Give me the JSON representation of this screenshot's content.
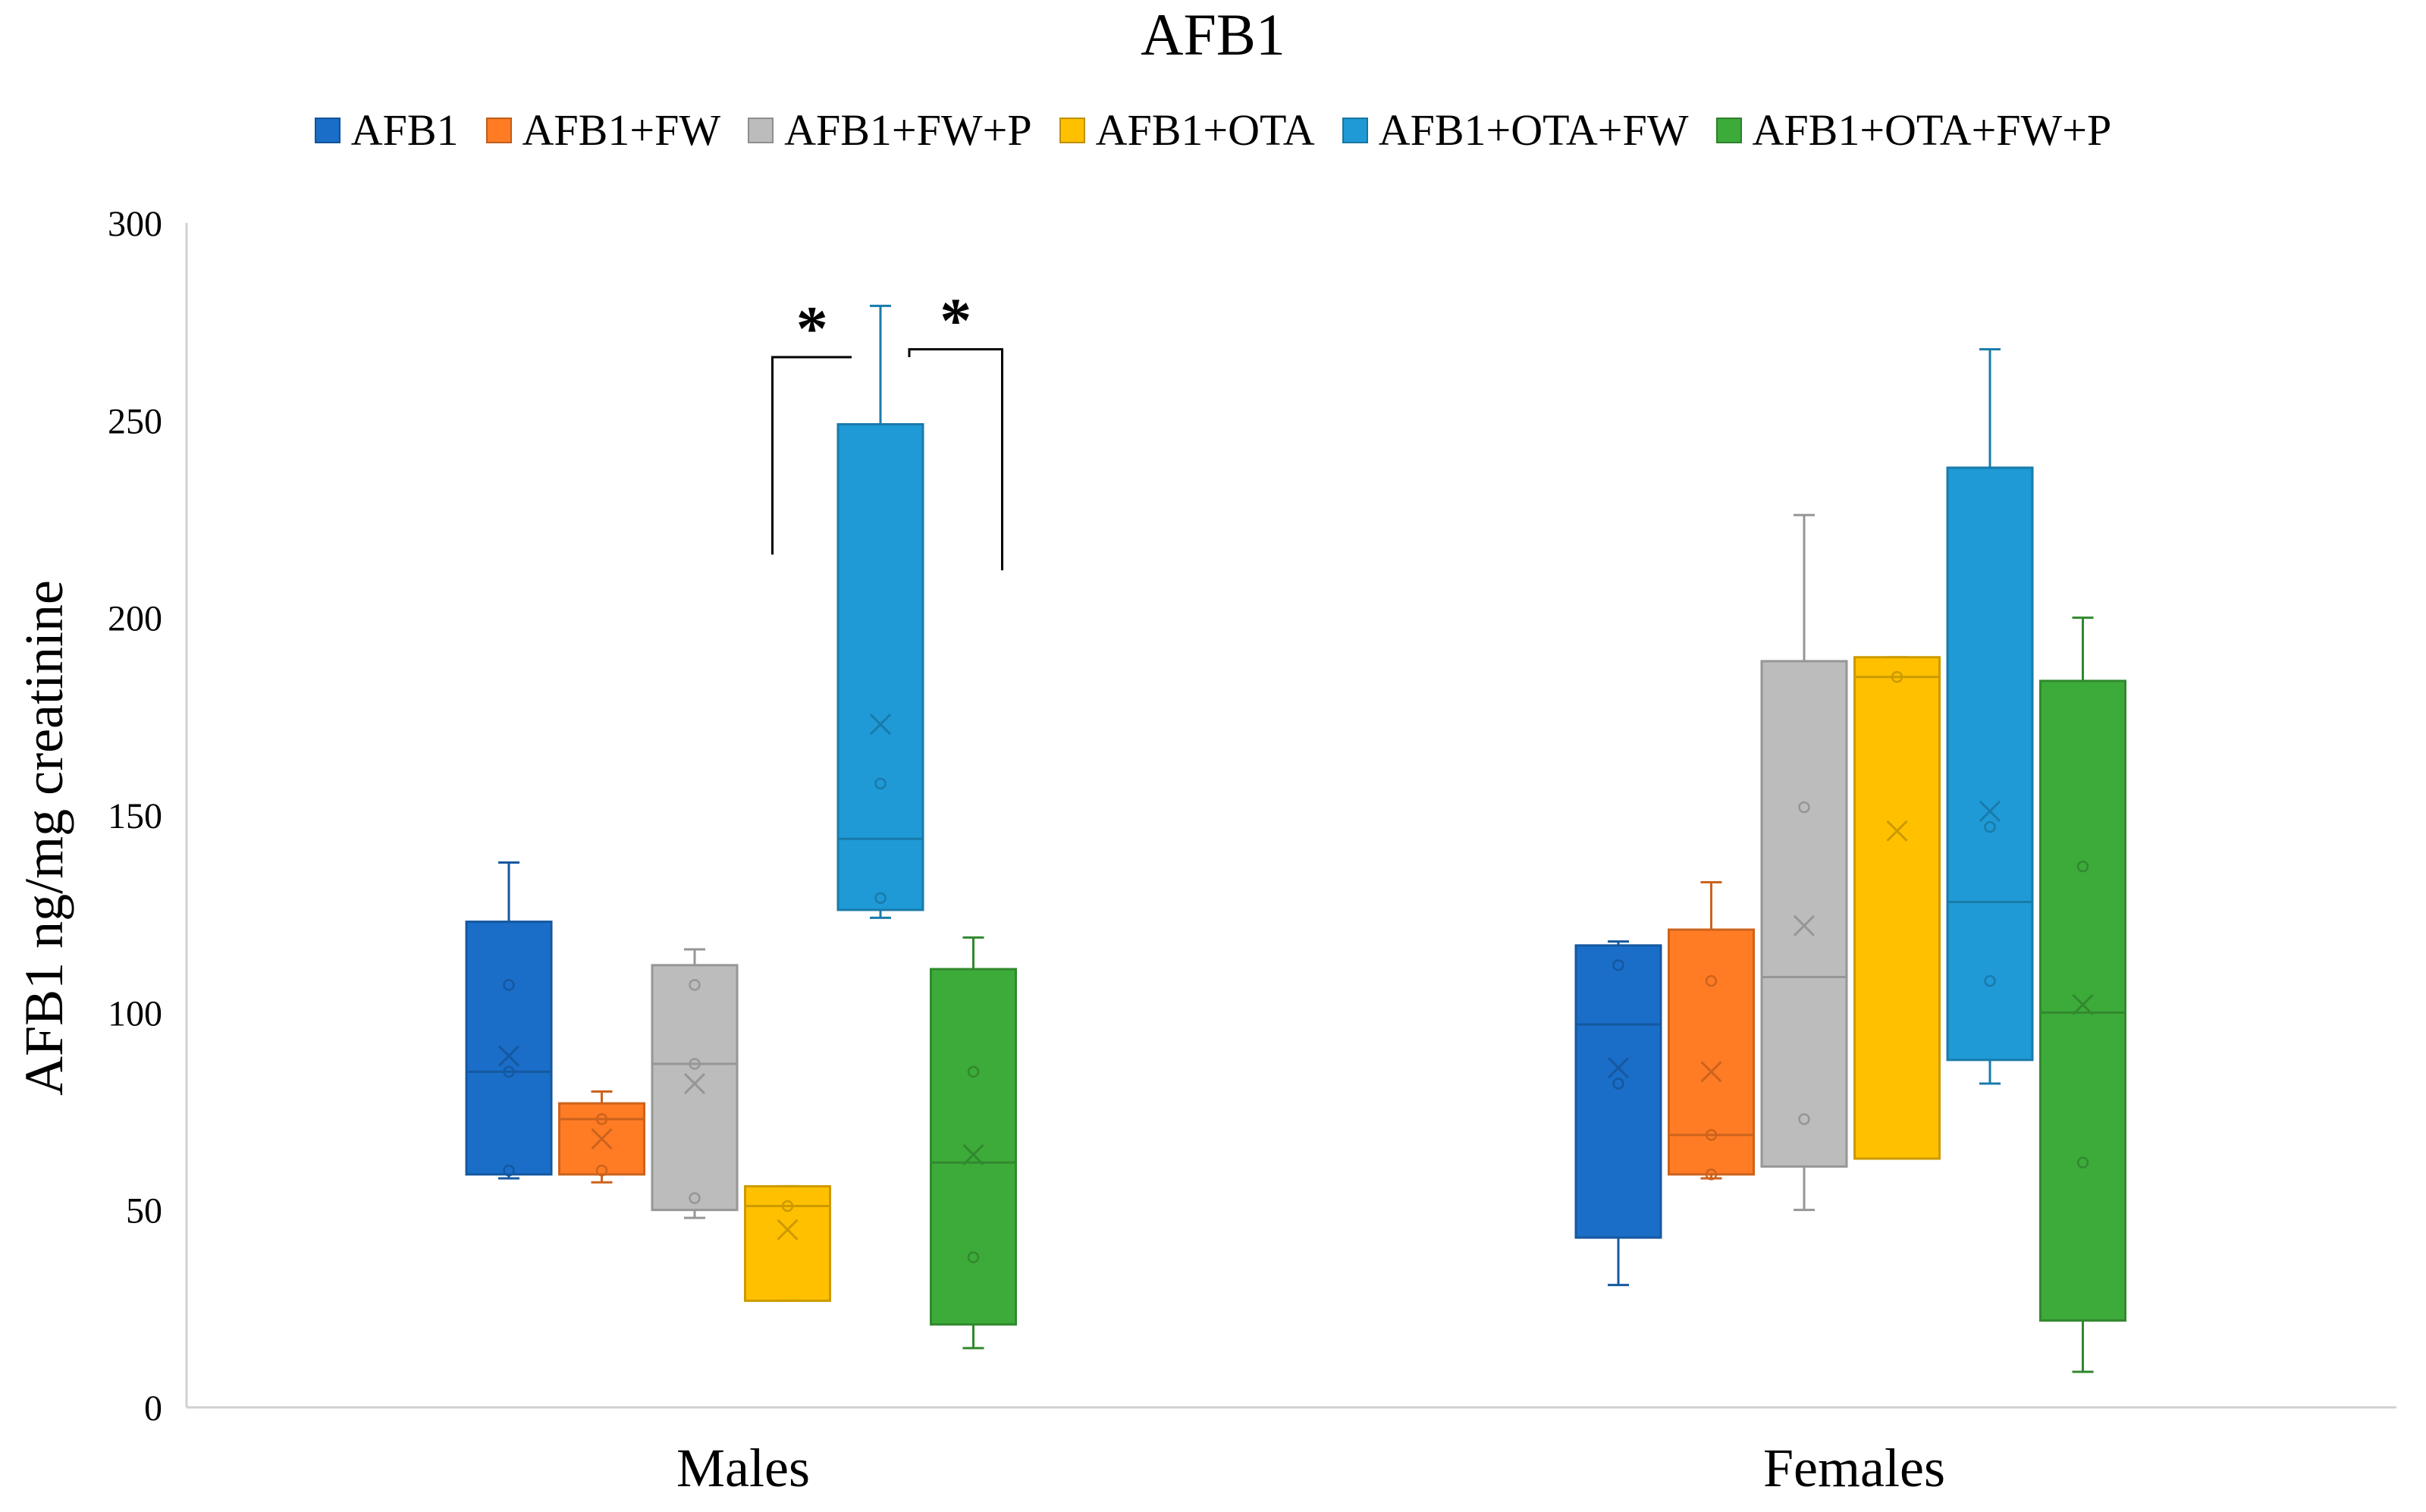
{
  "chart_data": {
    "type": "box",
    "title": "AFB1",
    "xlabel": "",
    "ylabel": "AFB1 ng/mg creatinine",
    "ylim": [
      0,
      300
    ],
    "yticks": [
      0,
      50,
      100,
      150,
      200,
      250,
      300
    ],
    "grid": false,
    "legend_position": "top",
    "categories": [
      "Males",
      "Females"
    ],
    "series": [
      {
        "name": "AFB1",
        "color": "#1a6ec8",
        "boxes": [
          {
            "category": "Males",
            "min": 58,
            "q1": 59,
            "median": 85,
            "q3": 123,
            "max": 138,
            "mean": 89,
            "points": [
              60,
              85,
              107
            ]
          },
          {
            "category": "Females",
            "min": 31,
            "q1": 43,
            "median": 97,
            "q3": 117,
            "max": 118,
            "mean": 86,
            "points": [
              82,
              112
            ]
          }
        ]
      },
      {
        "name": "AFB1+FW",
        "color": "#ff7c24",
        "boxes": [
          {
            "category": "Males",
            "min": 57,
            "q1": 59,
            "median": 73,
            "q3": 77,
            "max": 80,
            "mean": 68,
            "points": [
              60,
              73
            ]
          },
          {
            "category": "Females",
            "min": 58,
            "q1": 59,
            "median": 69,
            "q3": 121,
            "max": 133,
            "mean": 85,
            "points": [
              59,
              69,
              108
            ]
          }
        ]
      },
      {
        "name": "AFB1+FW+P",
        "color": "#bcbcbc",
        "boxes": [
          {
            "category": "Males",
            "min": 48,
            "q1": 50,
            "median": 87,
            "q3": 112,
            "max": 116,
            "mean": 82,
            "points": [
              53,
              87,
              107
            ]
          },
          {
            "category": "Females",
            "min": 50,
            "q1": 61,
            "median": 109,
            "q3": 189,
            "max": 226,
            "mean": 122,
            "points": [
              73,
              152
            ]
          }
        ]
      },
      {
        "name": "AFB1+OTA",
        "color": "#ffc000",
        "boxes": [
          {
            "category": "Males",
            "min": 27,
            "q1": 27,
            "median": 51,
            "q3": 56,
            "max": 56,
            "mean": 45,
            "points": [
              51
            ]
          },
          {
            "category": "Females",
            "min": 63,
            "q1": 63,
            "median": 185,
            "q3": 190,
            "max": 190,
            "mean": 146,
            "points": [
              185
            ]
          }
        ]
      },
      {
        "name": "AFB1+OTA+FW",
        "color": "#1f9ad6",
        "boxes": [
          {
            "category": "Males",
            "min": 124,
            "q1": 126,
            "median": 144,
            "q3": 249,
            "max": 279,
            "mean": 173,
            "points": [
              129,
              158
            ]
          },
          {
            "category": "Females",
            "min": 82,
            "q1": 88,
            "median": 128,
            "q3": 238,
            "max": 268,
            "mean": 151,
            "points": [
              108,
              147
            ]
          }
        ]
      },
      {
        "name": "AFB1+OTA+FW+P",
        "color": "#3dab3a",
        "boxes": [
          {
            "category": "Males",
            "min": 15,
            "q1": 21,
            "median": 62,
            "q3": 111,
            "max": 119,
            "mean": 64,
            "points": [
              38,
              85
            ]
          },
          {
            "category": "Females",
            "min": 9,
            "q1": 22,
            "median": 100,
            "q3": 184,
            "max": 200,
            "mean": 102,
            "points": [
              62,
              137
            ]
          }
        ]
      }
    ],
    "annotations": [
      {
        "text": "*",
        "category": "Males",
        "from_series": "AFB1+OTA",
        "to_series": "AFB1+OTA+FW",
        "left_drop_to": 216,
        "right_drop_to": 266,
        "bracket_y": 266
      },
      {
        "text": "*",
        "category": "Males",
        "from_series": "AFB1+OTA+FW",
        "to_series": "AFB1+OTA+FW+P",
        "left_drop_to": 266,
        "right_drop_to": 212,
        "bracket_y": 268
      }
    ]
  }
}
